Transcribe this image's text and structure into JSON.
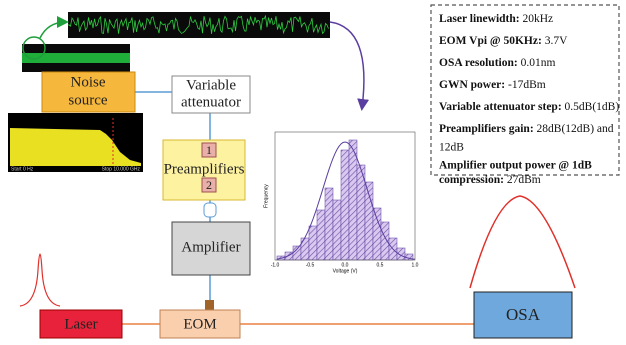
{
  "components": {
    "noise_source": [
      "Noise",
      "source"
    ],
    "variable_attenuator": [
      "Variable",
      "attenuator"
    ],
    "preamplifiers": "Preamplifiers",
    "preamp_stages": [
      "1",
      "2"
    ],
    "amplifier": "Amplifier",
    "laser": "Laser",
    "eom": "EOM",
    "osa": "OSA"
  },
  "spectrum": {
    "start": "Start 0 Hz",
    "stop": "Stop 10.000 GHz"
  },
  "histogram": {
    "ylabel": "Frequency",
    "xlabel": "Voltage (V)",
    "xticks": [
      "-1.0",
      "-0.5",
      "0.0",
      "0.5",
      "1.0"
    ]
  },
  "specs": [
    [
      "Laser linewidth:",
      "20kHz"
    ],
    [
      "EOM Vpi @ 50KHz:",
      "3.7V"
    ],
    [
      "OSA resolution:",
      "0.01nm"
    ],
    [
      "GWN power:",
      "-17dBm"
    ],
    [
      "Variable attenuator step:",
      "0.5dB(1dB)"
    ],
    [
      "Preamplifiers gain:",
      "28dB(12dB) and",
      "12dB"
    ],
    [
      "Amplifier output power @ 1dB",
      "compression:",
      "27dBm"
    ]
  ]
}
